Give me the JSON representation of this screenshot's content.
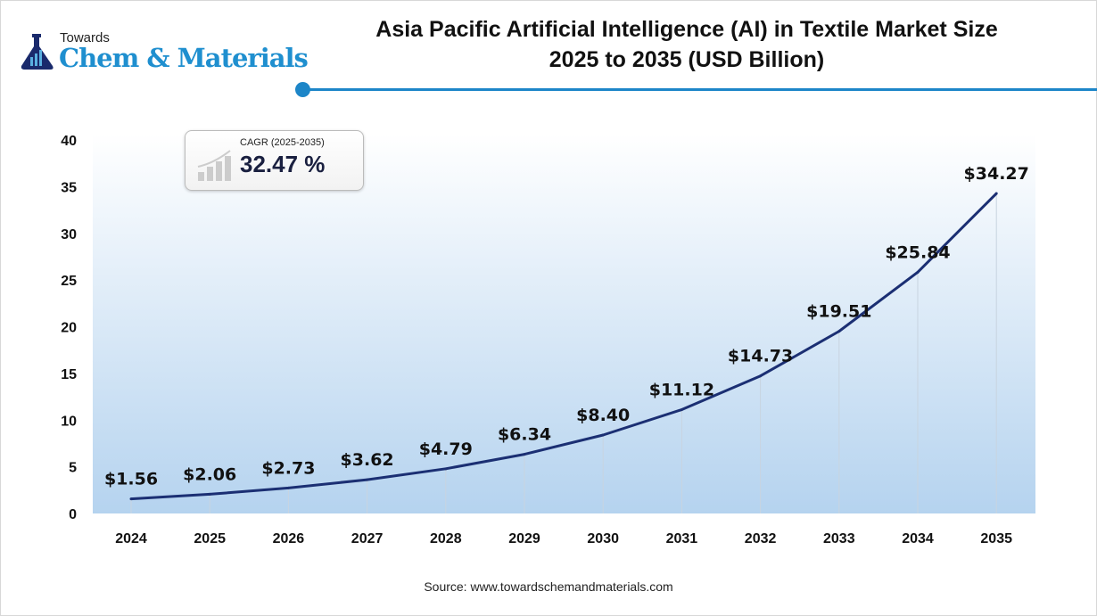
{
  "logo": {
    "towards": "Towards",
    "main": "Chem & Materials"
  },
  "colors": {
    "line": "#1b2f73",
    "accent": "#1d86c8",
    "area_top": "#ffffff",
    "area_bottom": "#b5d3ef"
  },
  "cagr": {
    "label": "CAGR (2025-2035)",
    "value": "32.47 %",
    "icon": "bar-chart-growth-icon"
  },
  "source": "Source: www.towardschemandmaterials.com",
  "chart_data": {
    "type": "line",
    "title": "Asia Pacific Artificial Intelligence (AI) in Textile Market Size 2025 to 2035 (USD Billion)",
    "title_lines": [
      "Asia Pacific Artificial Intelligence (AI) in Textile Market Size",
      "2025 to 2035 (USD Billion)"
    ],
    "categories": [
      "2024",
      "2025",
      "2026",
      "2027",
      "2028",
      "2029",
      "2030",
      "2031",
      "2032",
      "2033",
      "2034",
      "2035"
    ],
    "values": [
      1.56,
      2.06,
      2.73,
      3.62,
      4.79,
      6.34,
      8.4,
      11.12,
      14.73,
      19.51,
      25.84,
      34.27
    ],
    "data_labels": [
      "$1.56",
      "$2.06",
      "$2.73",
      "$3.62",
      "$4.79",
      "$6.34",
      "$8.40",
      "$11.12",
      "$14.73",
      "$19.51",
      "$25.84",
      "$34.27"
    ],
    "ylim": [
      0,
      40
    ],
    "yticks": [
      "0",
      "5",
      "10",
      "15",
      "20",
      "25",
      "30",
      "35",
      "40"
    ],
    "grid": false,
    "xlabel": "",
    "ylabel": ""
  }
}
